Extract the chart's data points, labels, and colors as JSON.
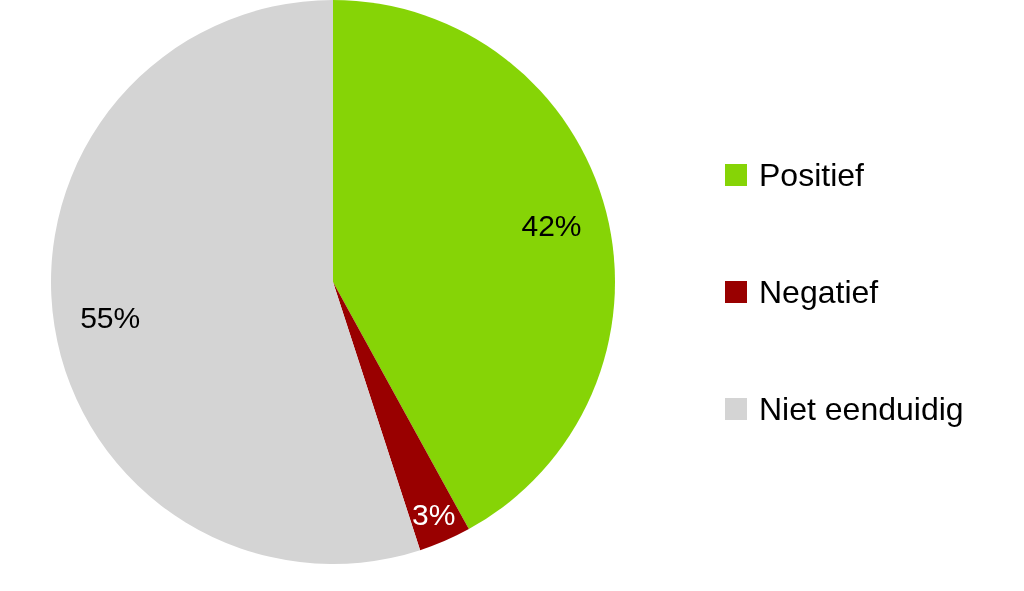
{
  "chart_data": {
    "type": "pie",
    "categories": [
      "Positief",
      "Negatief",
      "Niet eenduidig"
    ],
    "values": [
      42,
      3,
      55
    ],
    "colors": [
      "#86d406",
      "#990000",
      "#d4d4d4"
    ],
    "value_labels": [
      "42%",
      "3%",
      "55%"
    ],
    "legend": "right"
  }
}
